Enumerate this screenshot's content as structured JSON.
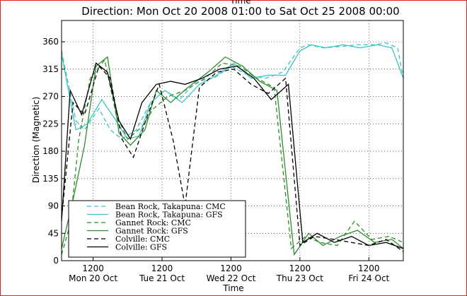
{
  "chart_data": {
    "type": "line",
    "top_clipped_text": "Time",
    "title": "Direction: Mon Oct 20 2008 01:00 to Sat Oct 25 2008 00:00",
    "xlabel": "Time",
    "ylabel": "Direction (Magnetic)",
    "xlim": [
      "2008-10-20 01:00",
      "2008-10-25 00:00"
    ],
    "ylim": [
      0,
      395
    ],
    "yticks": [
      0,
      45,
      90,
      135,
      180,
      225,
      270,
      315,
      360
    ],
    "xticks": [
      {
        "t": "2008-10-20 12:00",
        "top": "1200",
        "bottom": "Mon 20 Oct"
      },
      {
        "t": "2008-10-21 12:00",
        "top": "1200",
        "bottom": "Tue 21 Oct"
      },
      {
        "t": "2008-10-22 12:00",
        "top": "1200",
        "bottom": "Wed 22 Oct"
      },
      {
        "t": "2008-10-23 12:00",
        "top": "1200",
        "bottom": "Thu 23 Oct"
      },
      {
        "t": "2008-10-24 12:00",
        "top": "1200",
        "bottom": "Fri 24 Oct"
      }
    ],
    "grid": true,
    "legend_position": "lower-left",
    "series": [
      {
        "name": "Bean Rock, Takapuna: CMC",
        "color": "#3cc4c4",
        "dash": "dashed",
        "x": [
          "2008-10-20 01:00",
          "2008-10-20 06:00",
          "2008-10-20 09:00",
          "2008-10-20 14:00",
          "2008-10-20 18:00",
          "2008-10-20 22:00",
          "2008-10-21 03:00",
          "2008-10-21 08:00",
          "2008-10-21 13:00",
          "2008-10-21 18:00",
          "2008-10-22 00:00",
          "2008-10-22 06:00",
          "2008-10-22 12:00",
          "2008-10-22 18:00",
          "2008-10-23 00:00",
          "2008-10-23 06:00",
          "2008-10-23 12:00",
          "2008-10-23 15:00",
          "2008-10-23 20:00",
          "2008-10-24 02:00",
          "2008-10-24 08:00",
          "2008-10-24 14:00",
          "2008-10-24 18:00",
          "2008-10-24 22:00",
          "2008-10-25 00:00"
        ],
        "y": [
          345,
          230,
          215,
          250,
          215,
          200,
          215,
          260,
          280,
          265,
          295,
          300,
          320,
          305,
          300,
          310,
          350,
          355,
          350,
          352,
          355,
          355,
          358,
          350,
          300
        ]
      },
      {
        "name": "Bean Rock, Takapuna: GFS",
        "color": "#3cc4c4",
        "dash": "solid",
        "x": [
          "2008-10-20 01:00",
          "2008-10-20 06:00",
          "2008-10-20 10:00",
          "2008-10-20 15:00",
          "2008-10-20 20:00",
          "2008-10-21 00:00",
          "2008-10-21 04:00",
          "2008-10-21 08:00",
          "2008-10-21 13:00",
          "2008-10-21 19:00",
          "2008-10-22 01:00",
          "2008-10-22 07:00",
          "2008-10-22 13:00",
          "2008-10-22 19:00",
          "2008-10-23 01:00",
          "2008-10-23 07:00",
          "2008-10-23 12:00",
          "2008-10-23 16:00",
          "2008-10-23 21:00",
          "2008-10-24 03:00",
          "2008-10-24 09:00",
          "2008-10-24 15:00",
          "2008-10-24 20:00",
          "2008-10-25 00:00"
        ],
        "y": [
          340,
          215,
          225,
          265,
          230,
          200,
          205,
          260,
          280,
          260,
          290,
          305,
          325,
          300,
          305,
          305,
          345,
          355,
          350,
          355,
          350,
          355,
          350,
          300
        ]
      },
      {
        "name": "Gannet Rock: CMC",
        "color": "#2e8b2e",
        "dash": "dashed",
        "x": [
          "2008-10-20 01:00",
          "2008-10-20 04:00",
          "2008-10-20 07:00",
          "2008-10-20 11:00",
          "2008-10-20 16:00",
          "2008-10-20 20:00",
          "2008-10-21 00:00",
          "2008-10-21 05:00",
          "2008-10-21 09:00",
          "2008-10-21 14:00",
          "2008-10-21 20:00",
          "2008-10-22 03:00",
          "2008-10-22 09:00",
          "2008-10-22 15:00",
          "2008-10-22 21:00",
          "2008-10-23 03:00",
          "2008-10-23 09:00",
          "2008-10-23 14:00",
          "2008-10-23 19:00",
          "2008-10-24 01:00",
          "2008-10-24 07:00",
          "2008-10-24 13:00",
          "2008-10-24 19:00",
          "2008-10-25 00:00"
        ],
        "y": [
          10,
          60,
          200,
          300,
          330,
          240,
          200,
          220,
          250,
          270,
          280,
          300,
          325,
          320,
          300,
          285,
          20,
          40,
          30,
          25,
          65,
          35,
          40,
          30
        ]
      },
      {
        "name": "Gannet Rock: GFS",
        "color": "#2e8b2e",
        "dash": "solid",
        "x": [
          "2008-10-20 01:00",
          "2008-10-20 05:00",
          "2008-10-20 09:00",
          "2008-10-20 13:00",
          "2008-10-20 17:00",
          "2008-10-20 21:00",
          "2008-10-21 01:00",
          "2008-10-21 06:00",
          "2008-10-21 10:00",
          "2008-10-21 15:00",
          "2008-10-21 21:00",
          "2008-10-22 04:00",
          "2008-10-22 10:00",
          "2008-10-22 16:00",
          "2008-10-22 22:00",
          "2008-10-23 04:00",
          "2008-10-23 10:00",
          "2008-10-23 15:00",
          "2008-10-23 20:00",
          "2008-10-24 02:00",
          "2008-10-24 08:00",
          "2008-10-24 14:00",
          "2008-10-24 20:00",
          "2008-10-25 00:00"
        ],
        "y": [
          20,
          100,
          190,
          320,
          335,
          210,
          190,
          215,
          280,
          260,
          285,
          310,
          335,
          320,
          295,
          280,
          10,
          45,
          25,
          40,
          50,
          30,
          35,
          20
        ]
      },
      {
        "name": "Colville: CMC",
        "color": "#000000",
        "dash": "dashed",
        "x": [
          "2008-10-20 01:00",
          "2008-10-20 05:00",
          "2008-10-20 09:00",
          "2008-10-20 14:00",
          "2008-10-20 18:00",
          "2008-10-20 22:00",
          "2008-10-21 02:00",
          "2008-10-21 07:00",
          "2008-10-21 11:00",
          "2008-10-21 16:00",
          "2008-10-21 20:00",
          "2008-10-22 01:00",
          "2008-10-22 07:00",
          "2008-10-22 13:00",
          "2008-10-22 19:00",
          "2008-10-23 01:00",
          "2008-10-23 07:00",
          "2008-10-23 12:00",
          "2008-10-23 17:00",
          "2008-10-24 00:00",
          "2008-10-24 06:00",
          "2008-10-24 12:00",
          "2008-10-24 18:00",
          "2008-10-25 00:00"
        ],
        "y": [
          70,
          260,
          240,
          320,
          300,
          200,
          170,
          240,
          290,
          195,
          90,
          285,
          310,
          315,
          290,
          275,
          300,
          25,
          40,
          35,
          30,
          25,
          35,
          15
        ]
      },
      {
        "name": "Colville: GFS",
        "color": "#000000",
        "dash": "solid",
        "x": [
          "2008-10-20 01:00",
          "2008-10-20 04:00",
          "2008-10-20 08:00",
          "2008-10-20 13:00",
          "2008-10-20 17:00",
          "2008-10-20 21:00",
          "2008-10-21 01:00",
          "2008-10-21 05:00",
          "2008-10-21 10:00",
          "2008-10-21 15:00",
          "2008-10-21 20:00",
          "2008-10-22 02:00",
          "2008-10-22 08:00",
          "2008-10-22 14:00",
          "2008-10-22 20:00",
          "2008-10-23 02:00",
          "2008-10-23 08:00",
          "2008-10-23 13:00",
          "2008-10-23 18:00",
          "2008-10-24 00:00",
          "2008-10-24 06:00",
          "2008-10-24 12:00",
          "2008-10-24 18:00",
          "2008-10-25 00:00"
        ],
        "y": [
          65,
          280,
          240,
          325,
          310,
          230,
          200,
          260,
          290,
          295,
          290,
          300,
          315,
          320,
          300,
          265,
          290,
          30,
          45,
          30,
          40,
          25,
          30,
          20
        ]
      }
    ]
  }
}
